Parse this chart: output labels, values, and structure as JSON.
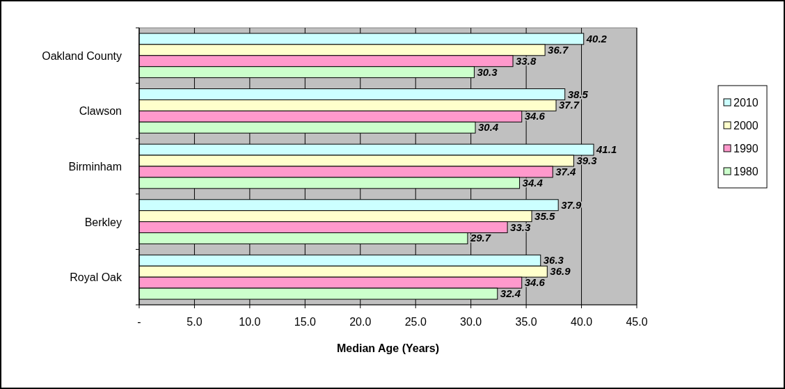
{
  "chart_data": {
    "type": "bar",
    "orientation": "horizontal",
    "xlabel": "Median Age (Years)",
    "categories": [
      "Oakland County",
      "Clawson",
      "Birminham",
      "Berkley",
      "Royal Oak"
    ],
    "series": [
      {
        "name": "2010",
        "color": "#ccffff",
        "values": [
          40.2,
          38.5,
          41.1,
          37.9,
          36.3
        ]
      },
      {
        "name": "2000",
        "color": "#ffffcc",
        "values": [
          36.7,
          37.7,
          39.3,
          35.5,
          36.9
        ]
      },
      {
        "name": "1990",
        "color": "#ff99cc",
        "values": [
          33.8,
          34.6,
          37.4,
          33.3,
          34.6
        ]
      },
      {
        "name": "1980",
        "color": "#ccffcc",
        "values": [
          30.3,
          30.4,
          34.4,
          29.7,
          32.4
        ]
      }
    ],
    "xlim": [
      0,
      45
    ],
    "xticks": [
      {
        "value": 0,
        "label": "-"
      },
      {
        "value": 5,
        "label": "5.0"
      },
      {
        "value": 10,
        "label": "10.0"
      },
      {
        "value": 15,
        "label": "15.0"
      },
      {
        "value": 20,
        "label": "20.0"
      },
      {
        "value": 25,
        "label": "25.0"
      },
      {
        "value": 30,
        "label": "30.0"
      },
      {
        "value": 35,
        "label": "35.0"
      },
      {
        "value": 40,
        "label": "40.0"
      },
      {
        "value": 45,
        "label": "45.0"
      }
    ],
    "grid": "x",
    "legend": "right",
    "data_labels": true
  }
}
